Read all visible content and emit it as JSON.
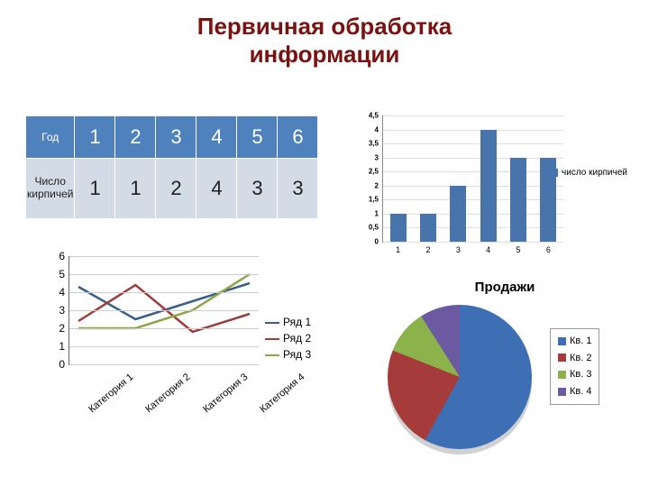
{
  "title_line1": "Первичная обработка",
  "title_line2": "информации",
  "title_color": "#7a1212",
  "title_fontsize": 26,
  "table": {
    "row_labels": [
      "Год",
      "Число кирпичей"
    ],
    "years": [
      "1",
      "2",
      "3",
      "4",
      "5",
      "6"
    ],
    "counts": [
      "1",
      "1",
      "2",
      "4",
      "3",
      "3"
    ],
    "header_bg": "#4f81bd",
    "header_text": "#ffffff",
    "row_bg": "#d3dbe7"
  },
  "bar_chart": {
    "type": "bar",
    "categories": [
      "1",
      "2",
      "3",
      "4",
      "5",
      "6"
    ],
    "values": [
      1,
      1,
      2,
      4,
      3,
      3
    ],
    "ylim": [
      0,
      4.5
    ],
    "ytick_step": 0.5,
    "bar_color": "#4774aa",
    "grid_color": "#dddddd",
    "legend_label": "число кирпичей",
    "label_fontsize": 9
  },
  "line_chart": {
    "type": "line",
    "categories": [
      "Категория 1",
      "Категория 2",
      "Категория 3",
      "Категория 4"
    ],
    "series": [
      {
        "name": "Ряд 1",
        "color": "#3a5f8b",
        "values": [
          4.3,
          2.5,
          3.5,
          4.5
        ]
      },
      {
        "name": "Ряд 2",
        "color": "#a03b3b",
        "values": [
          2.4,
          4.4,
          1.8,
          2.8
        ]
      },
      {
        "name": "Ряд 3",
        "color": "#8aa646",
        "values": [
          2.0,
          2.0,
          3.0,
          5.0
        ]
      }
    ],
    "ylim": [
      0,
      6
    ],
    "ytick_step": 1,
    "grid_color": "#cccccc"
  },
  "pie_chart": {
    "type": "pie",
    "title": "Продажи",
    "slices": [
      {
        "name": "Кв. 1",
        "color": "#3e6fb5",
        "value": 58
      },
      {
        "name": "Кв. 2",
        "color": "#a63b3b",
        "value": 23
      },
      {
        "name": "Кв. 3",
        "color": "#8cb24b",
        "value": 10
      },
      {
        "name": "Кв. 4",
        "color": "#6b5aa2",
        "value": 9
      }
    ]
  }
}
